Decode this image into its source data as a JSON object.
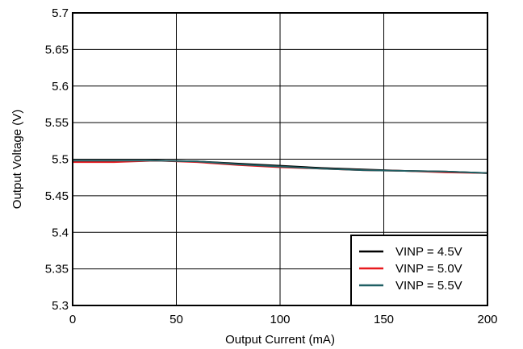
{
  "chart_data": {
    "type": "line",
    "title": "",
    "xlabel": "Output Current (mA)",
    "ylabel": "Output Voltage (V)",
    "xlim": [
      0,
      200
    ],
    "ylim": [
      5.3,
      5.7
    ],
    "xticks": [
      0,
      50,
      100,
      150,
      200
    ],
    "xtick_labels": [
      "0",
      "50",
      "100",
      "150",
      "200"
    ],
    "yticks": [
      5.3,
      5.35,
      5.4,
      5.45,
      5.5,
      5.55,
      5.6,
      5.65,
      5.7
    ],
    "ytick_labels": [
      "5.3",
      "5.35",
      "5.4",
      "5.45",
      "5.5",
      "5.55",
      "5.6",
      "5.65",
      "5.7"
    ],
    "grid": true,
    "legend_position": "bottom-right",
    "series": [
      {
        "name": "VINP = 4.5V",
        "color": "#000000",
        "x": [
          0,
          20,
          40,
          60,
          80,
          100,
          120,
          140,
          160,
          180,
          200
        ],
        "y": [
          5.497,
          5.497,
          5.498,
          5.497,
          5.494,
          5.491,
          5.488,
          5.486,
          5.484,
          5.483,
          5.481
        ]
      },
      {
        "name": "VINP = 5.0V",
        "color": "#e8191e",
        "x": [
          0,
          20,
          40,
          60,
          80,
          100,
          120,
          140,
          160,
          180,
          200
        ],
        "y": [
          5.496,
          5.496,
          5.498,
          5.496,
          5.492,
          5.489,
          5.487,
          5.485,
          5.484,
          5.482,
          5.481
        ]
      },
      {
        "name": "VINP = 5.5V",
        "color": "#1f5f63",
        "x": [
          0,
          20,
          40,
          60,
          80,
          100,
          120,
          140,
          160,
          180,
          200
        ],
        "y": [
          5.498,
          5.498,
          5.498,
          5.497,
          5.493,
          5.49,
          5.487,
          5.485,
          5.484,
          5.483,
          5.481
        ]
      }
    ]
  }
}
